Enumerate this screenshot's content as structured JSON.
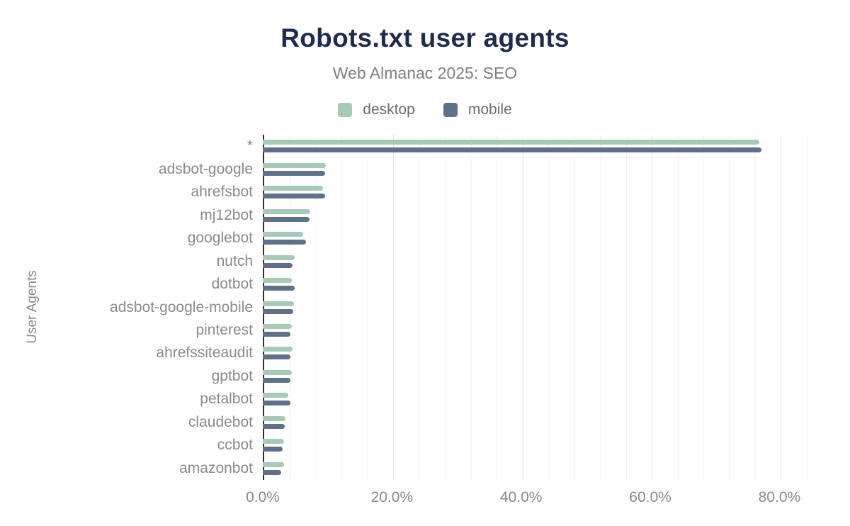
{
  "chart_data": {
    "type": "bar",
    "orientation": "horizontal",
    "title": "Robots.txt user agents",
    "subtitle": "Web Almanac 2025: SEO",
    "ylabel": "User Agents",
    "xlabel": "",
    "legend_position": "top",
    "grid": "vertical",
    "categories": [
      "*",
      "adsbot-google",
      "ahrefsbot",
      "mj12bot",
      "googlebot",
      "nutch",
      "dotbot",
      "adsbot-google-mobile",
      "pinterest",
      "ahrefssiteaudit",
      "gptbot",
      "petalbot",
      "claudebot",
      "ccbot",
      "amazonbot"
    ],
    "series": [
      {
        "name": "desktop",
        "color": "#a7cab7",
        "values": [
          76.9,
          9.8,
          9.3,
          7.3,
          6.2,
          4.9,
          4.5,
          4.8,
          4.5,
          4.6,
          4.5,
          4.0,
          3.5,
          3.3,
          3.3
        ]
      },
      {
        "name": "mobile",
        "color": "#5e7189",
        "values": [
          77.2,
          9.6,
          9.7,
          7.2,
          6.7,
          4.6,
          4.9,
          4.7,
          4.3,
          4.3,
          4.3,
          4.3,
          3.4,
          3.1,
          2.9
        ]
      }
    ],
    "x_axis": {
      "unit": "%",
      "ticks": [
        0,
        20,
        40,
        60,
        80
      ],
      "tick_labels": [
        "0.0%",
        "20.0%",
        "40.0%",
        "60.0%",
        "80.0%"
      ],
      "max": 85,
      "grid_max": 84,
      "minor_grid_step": 4
    },
    "colors": {
      "title": "#1e2b4d",
      "subtitle": "#7f7f7f",
      "axis_line": "#2f3033",
      "labels": "#8a8a8a",
      "gridline": "#f2f2f2"
    }
  }
}
